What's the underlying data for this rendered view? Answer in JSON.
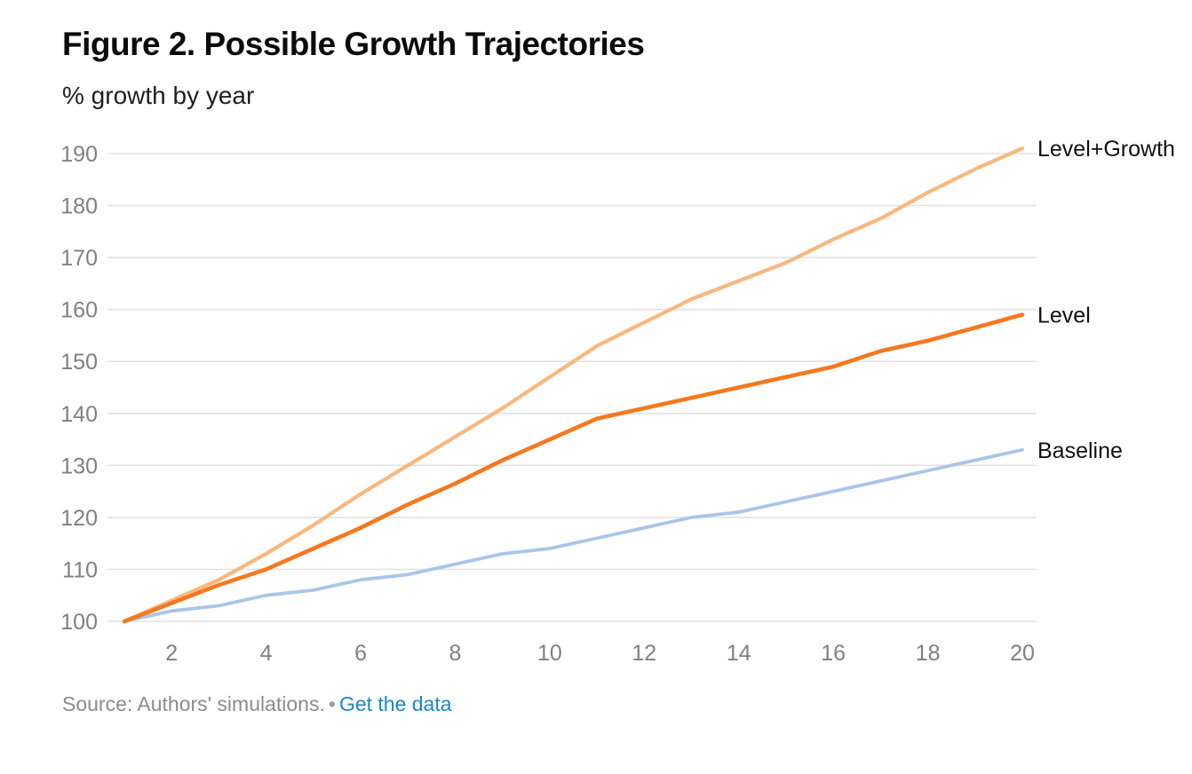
{
  "header": {
    "title": "Figure 2. Possible Growth Trajectories",
    "subtitle": "% growth by year"
  },
  "chart_data": {
    "type": "line",
    "title": "Figure 2. Possible Growth Trajectories",
    "ylabel": "% growth by year",
    "xlabel": "",
    "x": [
      1,
      2,
      3,
      4,
      5,
      6,
      7,
      8,
      9,
      10,
      11,
      12,
      13,
      14,
      15,
      16,
      17,
      18,
      19,
      20
    ],
    "series": [
      {
        "name": "Level+Growth",
        "color": "#F8B87E",
        "values": [
          100,
          104,
          108,
          113,
          118.5,
          124.5,
          130,
          135.5,
          141,
          147,
          153,
          157.5,
          162,
          165.5,
          169,
          173.5,
          177.5,
          182.5,
          187,
          191
        ]
      },
      {
        "name": "Level",
        "color": "#F5781F",
        "values": [
          100,
          103.5,
          107,
          110,
          114,
          118,
          122.5,
          126.5,
          131,
          135,
          139,
          141,
          143,
          145,
          147,
          149,
          152,
          154,
          156.5,
          159
        ]
      },
      {
        "name": "Baseline",
        "color": "#A9C6E9",
        "values": [
          100,
          102,
          103,
          105,
          106,
          108,
          109,
          111,
          113,
          114,
          116,
          118,
          120,
          121,
          123,
          125,
          127,
          129,
          131,
          133
        ]
      }
    ],
    "xticks": [
      2,
      4,
      6,
      8,
      10,
      12,
      14,
      16,
      18,
      20
    ],
    "yticks": [
      100,
      110,
      120,
      130,
      140,
      150,
      160,
      170,
      180,
      190
    ],
    "xlim": [
      1,
      20
    ],
    "ylim": [
      100,
      191
    ],
    "grid": true,
    "legend_position": "right-end-labels",
    "gridline_color": "#E2E2E2",
    "tick_label_color": "#808080",
    "series_label_color": "#111111"
  },
  "footer": {
    "source_text": "Source: Authors' simulations.",
    "separator": "•",
    "link_label": "Get the data"
  }
}
